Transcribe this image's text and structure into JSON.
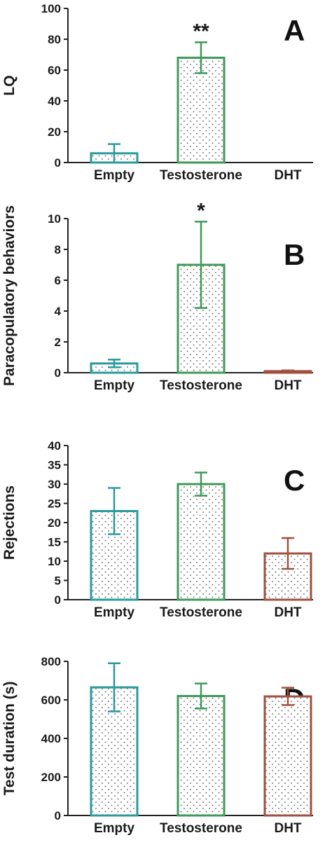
{
  "colors": {
    "Empty": "#2a9a9c",
    "Testosterone": "#3d9a5a",
    "DHT": "#a0503f",
    "axis": "#222222"
  },
  "chart_data": [
    {
      "panel": "A",
      "type": "bar",
      "ylabel": "LQ",
      "categories": [
        "Empty",
        "Testosterone",
        "DHT"
      ],
      "values": [
        6,
        68,
        0
      ],
      "errors": [
        6,
        10,
        0
      ],
      "ylim": [
        0,
        100
      ],
      "yticks": [
        0,
        20,
        40,
        60,
        80,
        100
      ],
      "annotations": [
        {
          "category": "Testosterone",
          "text": "**"
        }
      ]
    },
    {
      "panel": "B",
      "type": "bar",
      "ylabel": "Paracopulatory behaviors",
      "categories": [
        "Empty",
        "Testosterone",
        "DHT"
      ],
      "values": [
        0.6,
        7.0,
        0.1
      ],
      "errors": [
        0.25,
        2.8,
        0.05
      ],
      "ylim": [
        0,
        10
      ],
      "yticks": [
        0,
        2,
        4,
        6,
        8,
        10
      ],
      "annotations": [
        {
          "category": "Testosterone",
          "text": "*"
        }
      ]
    },
    {
      "panel": "C",
      "type": "bar",
      "ylabel": "Rejections",
      "categories": [
        "Empty",
        "Testosterone",
        "DHT"
      ],
      "values": [
        23,
        30,
        12
      ],
      "errors": [
        6,
        3,
        4
      ],
      "ylim": [
        0,
        40
      ],
      "yticks": [
        0,
        5,
        10,
        15,
        20,
        25,
        30,
        35,
        40
      ],
      "annotations": []
    },
    {
      "panel": "D",
      "type": "bar",
      "ylabel": "Test duration (s)",
      "categories": [
        "Empty",
        "Testosterone",
        "DHT"
      ],
      "values": [
        665,
        620,
        618
      ],
      "errors": [
        125,
        65,
        45
      ],
      "ylim": [
        0,
        800
      ],
      "yticks": [
        0,
        200,
        400,
        600,
        800
      ],
      "annotations": []
    }
  ]
}
